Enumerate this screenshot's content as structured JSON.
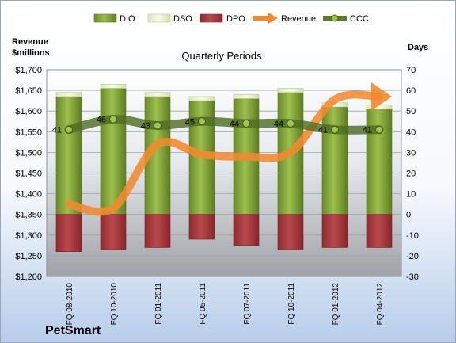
{
  "chart_data": {
    "type": "bar",
    "title": "Quarterly Periods",
    "company": "PetSmart",
    "ylabel_left": [
      "Revenue",
      "$millions"
    ],
    "ylabel_right": "Days",
    "categories": [
      "FQ 08-2010",
      "FQ 10-2010",
      "FQ 01-2011",
      "FQ 05-2011",
      "FQ 07-2011",
      "FQ 10-2011",
      "FQ 01-2012",
      "FQ 04-2012"
    ],
    "y_left": {
      "min": 1200,
      "max": 1700,
      "step": 50
    },
    "y_right": {
      "min": -30,
      "max": 70,
      "step": 10
    },
    "legend": [
      "DIO",
      "DSO",
      "DPO",
      "Revenue",
      "CCC"
    ],
    "series": [
      {
        "name": "DIO",
        "axis": "right",
        "values": [
          57,
          61,
          57,
          55,
          56,
          59,
          52,
          51
        ],
        "color": "#7fa035"
      },
      {
        "name": "DSO",
        "axis": "right",
        "values": [
          2,
          2,
          2,
          2,
          2,
          2,
          2,
          2
        ],
        "color": "#eef3d3"
      },
      {
        "name": "DPO",
        "axis": "right",
        "values": [
          -18,
          -17,
          -16,
          -12,
          -15,
          -17,
          -16,
          -16
        ],
        "color": "#a8363b"
      },
      {
        "name": "Revenue",
        "axis": "left",
        "values": [
          1375,
          1365,
          1520,
          1495,
          1490,
          1500,
          1628,
          1635
        ],
        "color": "#f28a2e"
      },
      {
        "name": "CCC",
        "axis": "right",
        "values": [
          41,
          46,
          43,
          45,
          44,
          44,
          41,
          41
        ],
        "color": "#5e7a2c"
      }
    ],
    "data_labels": [
      "41",
      "46",
      "43",
      "45",
      "44",
      "44",
      "41",
      "41"
    ],
    "tick_labels_left": [
      "$1,200",
      "$1,250",
      "$1,300",
      "$1,350",
      "$1,400",
      "$1,450",
      "$1,500",
      "$1,550",
      "$1,600",
      "$1,650",
      "$1,700"
    ],
    "tick_labels_right": [
      "-30",
      "-20",
      "-10",
      "0",
      "10",
      "20",
      "30",
      "40",
      "50",
      "60",
      "70"
    ]
  }
}
